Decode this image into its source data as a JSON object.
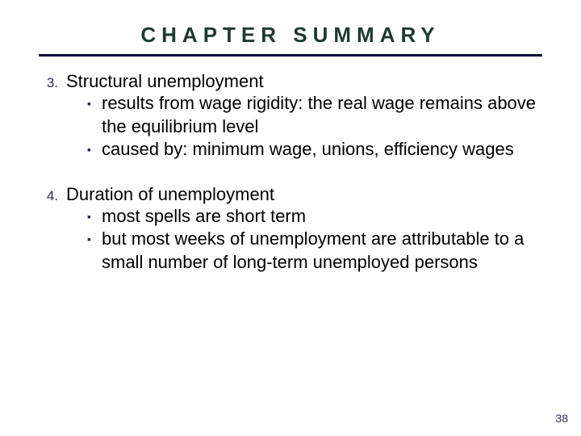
{
  "title": {
    "text": "CHAPTER SUMMARY",
    "color": "#1f3a2f",
    "fontsize": 26,
    "letter_spacing": 7,
    "rule_color": "#0a0a3a",
    "rule_width": 3
  },
  "body": {
    "color": "#000000",
    "fontsize": 22,
    "num_fontsize": 17,
    "num_color": "#2a2a60",
    "bullet_glyph": "▪",
    "bullet_color": "#2a2a60"
  },
  "items": [
    {
      "num": "3.",
      "heading": "Structural unemployment",
      "bullets": [
        "results from wage rigidity:  the real wage remains above the equilibrium level",
        "caused by:  minimum wage, unions, efficiency wages"
      ]
    },
    {
      "num": "4.",
      "heading": "Duration of unemployment",
      "bullets": [
        "most spells are short term",
        "but most weeks of unemployment are attributable to a small number of long-term unemployed persons"
      ]
    }
  ],
  "page_number": {
    "value": "38",
    "color": "#2a2a60",
    "fontsize": 14
  }
}
